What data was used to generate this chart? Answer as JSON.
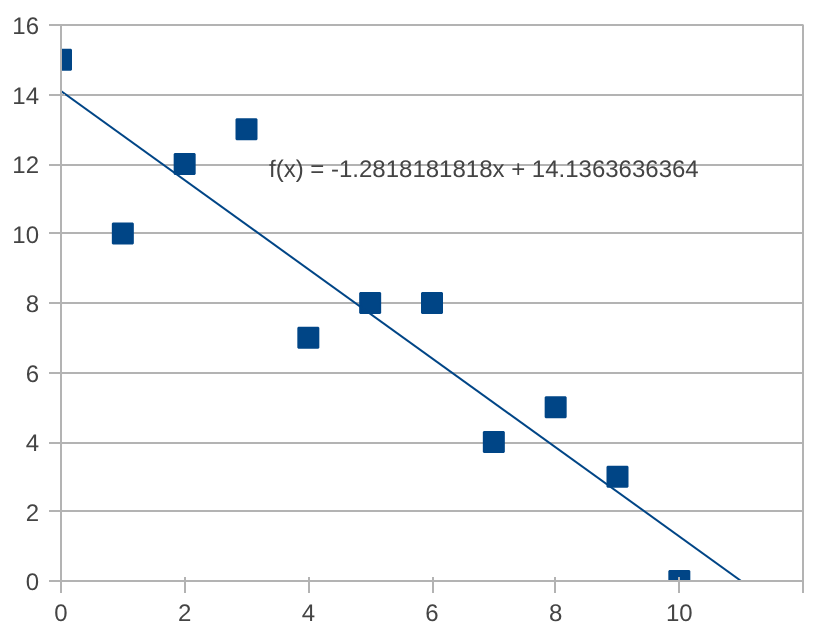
{
  "chart_data": {
    "type": "scatter",
    "x": [
      0,
      1,
      2,
      3,
      4,
      5,
      6,
      7,
      8,
      9,
      10
    ],
    "series": [
      {
        "color": "#004586",
        "marker": "square",
        "values": [
          15,
          10,
          12,
          13,
          7,
          8,
          8,
          4,
          5,
          3,
          0
        ]
      },
      {
        "type": "line",
        "color": "#004586",
        "marker": "none",
        "x": [
          0,
          11.0
        ],
        "values": [
          14.1,
          0
        ]
      }
    ],
    "xlim": [
      0,
      12
    ],
    "xticks": [
      0,
      2,
      4,
      6,
      8,
      10,
      {
        "value": 12,
        "label": null
      }
    ],
    "ylim": [
      0,
      16
    ],
    "yticks": [
      0,
      2,
      4,
      6,
      8,
      10,
      12,
      14,
      16
    ],
    "grid": "y",
    "annotations": [
      "f(x) = -1.2818181818x + 14.1363636364"
    ]
  }
}
